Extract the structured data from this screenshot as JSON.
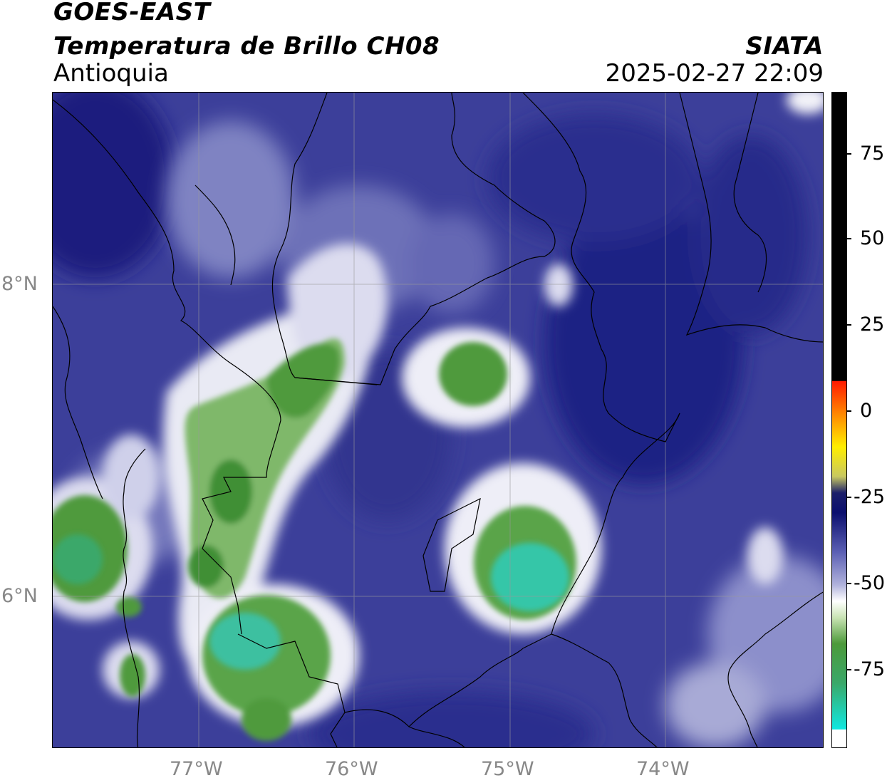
{
  "header": {
    "satellite": "GOES-EAST",
    "product": "Temperatura de Brillo CH08",
    "region": "Antioquia",
    "org": "SIATA",
    "datetime": "2025-02-27 22:09"
  },
  "axes": {
    "lat_labels": [
      "8°N",
      "6°N"
    ],
    "lon_labels": [
      "77°W",
      "76°W",
      "75°W",
      "74°W"
    ]
  },
  "colorbar": {
    "tick_labels": [
      "75",
      "50",
      "25",
      "0",
      "-25",
      "-50",
      "-75"
    ],
    "colors": {
      "top": "#000000",
      "warm": [
        "#ff2200",
        "#ff8800",
        "#ffee00",
        "#c8c860"
      ],
      "cold_blue": [
        "#0b0f6e",
        "#2a2f93",
        "#5b5fb4",
        "#9a9dd2",
        "#e8e8f4"
      ],
      "cold_green": [
        "#c9e4b4",
        "#4c9a3a",
        "#3aa86a",
        "#1ad8c8",
        "#10e8e0"
      ],
      "bottom": "#ffffff"
    }
  },
  "map_colors": {
    "background_blue": "#3c3f9a",
    "deep_blue": "#1f2384",
    "light_blue": "#8c8fcb",
    "white_cloud": "#f2f2f8",
    "green_core": "#3f8f35",
    "cyan_core": "#35c6a8",
    "border": "#000000",
    "grid": "#9a9a9a"
  }
}
